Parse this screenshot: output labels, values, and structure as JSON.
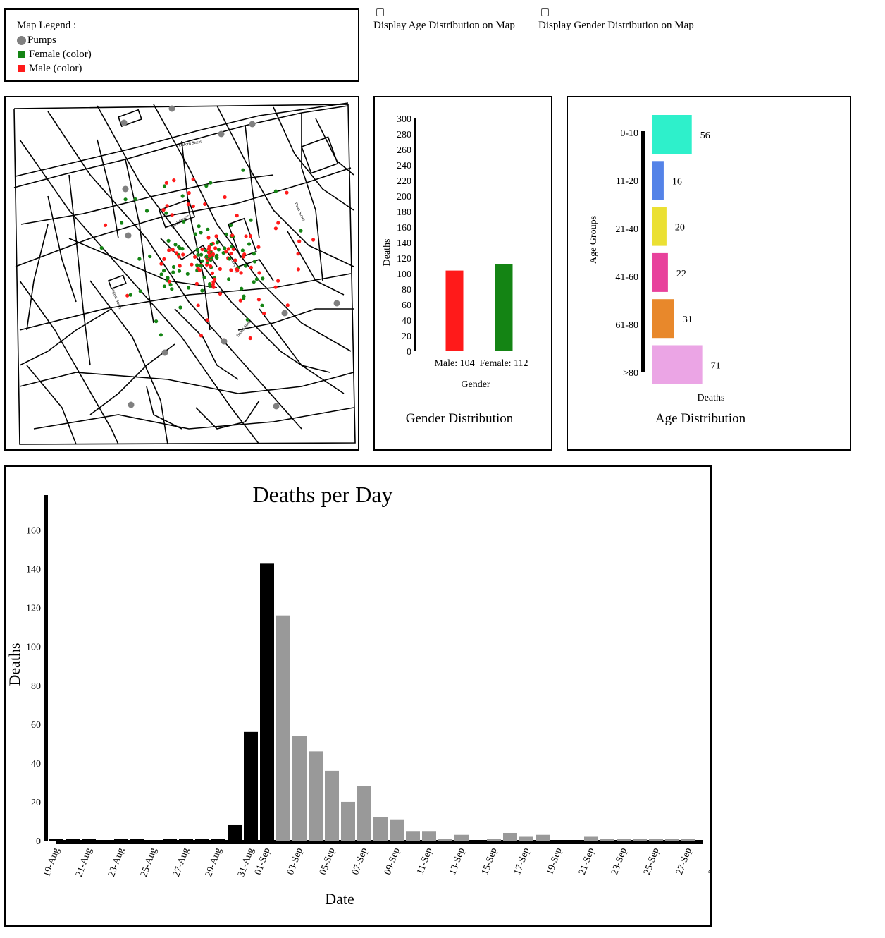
{
  "legend": {
    "title": "Map Legend :",
    "items": [
      {
        "label": "Pumps",
        "color": "#808080",
        "icon": "circle"
      },
      {
        "label": "Female (color)",
        "color": "#148414",
        "icon": "square"
      },
      {
        "label": "Male (color)",
        "color": "#ff1a1a",
        "icon": "square"
      }
    ]
  },
  "toggles": {
    "age_label": "Display Age Distribution on Map",
    "gender_label": "Display Gender Distribution on Map"
  },
  "map": {
    "street_labels": [
      "Oxford Street",
      "Work House",
      "Dean Street",
      "Brewery",
      "Regent Street",
      "Broad Street"
    ],
    "colors": {
      "pump": "#808080",
      "female": "#148414",
      "male": "#ff1a1a"
    }
  },
  "chart_data": [
    {
      "type": "bar",
      "title": "Gender Distribution",
      "xlabel": "Gender",
      "ylabel": "Deaths",
      "categories": [
        "Male: 104",
        "Female: 112"
      ],
      "values": [
        104,
        112
      ],
      "colors": [
        "#ff1a1a",
        "#148414"
      ],
      "ylim": [
        0,
        300
      ],
      "yticks": [
        0,
        20,
        40,
        60,
        80,
        100,
        120,
        140,
        160,
        180,
        200,
        220,
        240,
        260,
        280,
        300
      ]
    },
    {
      "type": "bar",
      "orientation": "horizontal",
      "title": "Age Distribution",
      "xlabel": "Deaths",
      "ylabel": "Age Groups",
      "categories": [
        "0-10",
        "11-20",
        "21-40",
        "41-60",
        "61-80",
        ">80"
      ],
      "values": [
        56,
        16,
        20,
        22,
        31,
        71
      ],
      "colors": [
        "#2ef0cb",
        "#5483e8",
        "#ebe033",
        "#e8429c",
        "#e8882b",
        "#eba5e5"
      ]
    },
    {
      "type": "bar",
      "title": "Deaths per Day",
      "xlabel": "Date",
      "ylabel": "Deaths",
      "ylim": [
        0,
        178
      ],
      "yticks": [
        0,
        20,
        40,
        60,
        80,
        100,
        120,
        140,
        160
      ],
      "tick_labels": [
        "19-Aug",
        "21-Aug",
        "23-Aug",
        "25-Aug",
        "27-Aug",
        "29-Aug",
        "31-Aug",
        "01-Sep",
        "03-Sep",
        "05-Sep",
        "07-Sep",
        "09-Sep",
        "11-Sep",
        "13-Sep",
        "15-Sep",
        "17-Sep",
        "19-Sep",
        "21-Sep",
        "23-Sep",
        "25-Sep",
        "27-Sep",
        "29-Sep"
      ],
      "categories": [
        "19-Aug",
        "20-Aug",
        "21-Aug",
        "22-Aug",
        "23-Aug",
        "24-Aug",
        "25-Aug",
        "26-Aug",
        "27-Aug",
        "28-Aug",
        "29-Aug",
        "30-Aug",
        "31-Aug",
        "01-Sep",
        "02-Sep",
        "03-Sep",
        "04-Sep",
        "05-Sep",
        "06-Sep",
        "07-Sep",
        "08-Sep",
        "09-Sep",
        "10-Sep",
        "11-Sep",
        "12-Sep",
        "13-Sep",
        "14-Sep",
        "15-Sep",
        "16-Sep",
        "17-Sep",
        "18-Sep",
        "19-Sep",
        "20-Sep",
        "21-Sep",
        "22-Sep",
        "23-Sep",
        "24-Sep",
        "25-Sep",
        "26-Sep",
        "27-Sep",
        "28-Sep",
        "29-Sep"
      ],
      "values": [
        1,
        1,
        1,
        0,
        1,
        1,
        0,
        1,
        1,
        1,
        1,
        8,
        56,
        143,
        116,
        54,
        46,
        36,
        20,
        28,
        12,
        11,
        5,
        5,
        1,
        3,
        0,
        1,
        4,
        2,
        3,
        0,
        0,
        2,
        1,
        1,
        1,
        1,
        1,
        1,
        0,
        0
      ],
      "colors": {
        "before_pump_removal": "#000000",
        "after_pump_removal": "#999999"
      },
      "highlight_last_index": 13
    }
  ]
}
